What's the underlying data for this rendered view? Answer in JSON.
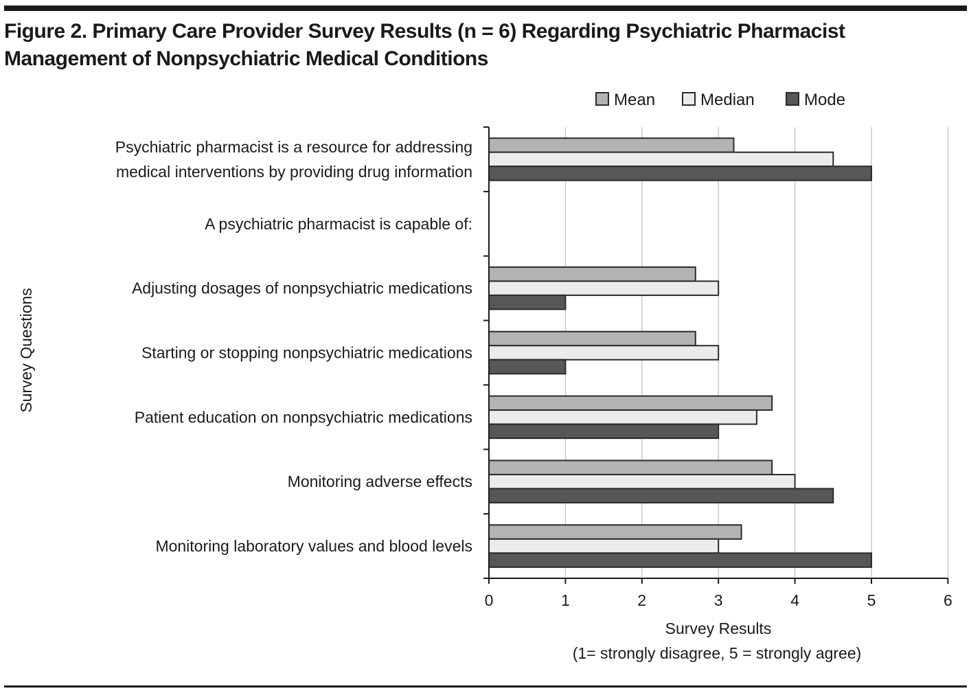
{
  "figure": {
    "title_line1": "Figure 2. Primary Care Provider Survey Results (n = 6) Regarding Psychiatric Pharmacist",
    "title_line2": "Management of Nonpsychiatric Medical Conditions"
  },
  "chart_data": {
    "type": "bar",
    "orientation": "horizontal",
    "title": "Figure 2. Primary Care Provider Survey Results (n = 6) Regarding Psychiatric Pharmacist Management of Nonpsychiatric Medical Conditions",
    "xlabel": "Survey Results",
    "xlabel_sub": "(1= strongly disagree, 5 = strongly agree)",
    "ylabel": "Survey Questions",
    "xlim": [
      0,
      6
    ],
    "xticks": [
      "0",
      "1",
      "2",
      "3",
      "4",
      "5",
      "6"
    ],
    "grid": "vertical",
    "legend_position": "top-right",
    "categories": [
      [
        "Psychiatric pharmacist is a resource for addressing",
        "medical interventions by providing drug information"
      ],
      [
        "A psychiatric pharmacist is capable of:"
      ],
      [
        "Adjusting dosages of nonpsychiatric medications"
      ],
      [
        "Starting or stopping nonpsychiatric medications"
      ],
      [
        "Patient education on nonpsychiatric medications"
      ],
      [
        "Monitoring adverse effects"
      ],
      [
        "Monitoring laboratory values and blood levels"
      ]
    ],
    "series": [
      {
        "name": "Mean",
        "color": "#b3b3b3",
        "values": [
          3.2,
          null,
          2.7,
          2.7,
          3.7,
          3.7,
          3.3
        ]
      },
      {
        "name": "Median",
        "color": "#ebebeb",
        "values": [
          4.5,
          null,
          3.0,
          3.0,
          3.5,
          4.0,
          3.0
        ]
      },
      {
        "name": "Mode",
        "color": "#575757",
        "values": [
          5.0,
          null,
          1.0,
          1.0,
          3.0,
          4.5,
          5.0
        ]
      }
    ]
  }
}
